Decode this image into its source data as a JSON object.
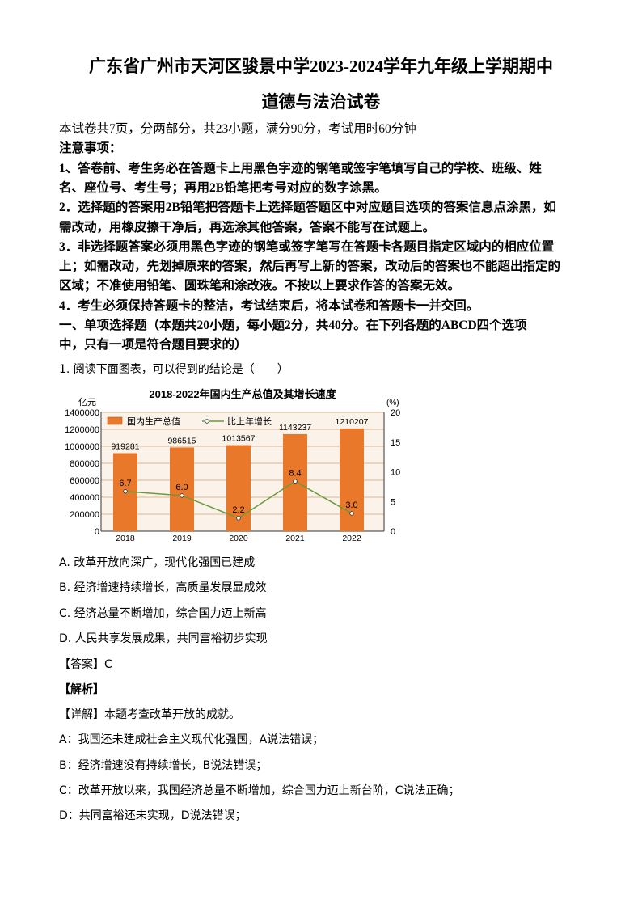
{
  "header": {
    "title_line1": "广东省广州市天河区骏景中学2023-2024学年九年级上学期期中",
    "title_line2": "道德与法治试卷"
  },
  "intro": [
    {
      "text": "本试卷共7页，分两部分，共23小题，满分90分，考试用时60分钟",
      "bold": false
    },
    {
      "text": "注意事项：",
      "bold": true
    },
    {
      "text": "1、答卷前、考生务必在答题卡上用黑色字迹的钢笔或签字笔填写自己的学校、班级、姓",
      "bold": true
    },
    {
      "text": "名、座位号、考生号；再用2B铅笔把考号对应的数字涂黑。",
      "bold": true
    },
    {
      "text": "2．选择题的答案用2B铅笔把答题卡上选择题答题区中对应题目选项的答案信息点涂黑，如",
      "bold": true
    },
    {
      "text": "需改动，用橡皮擦干净后，再选涂其他答案，答案不能写在试题上。",
      "bold": true
    },
    {
      "text": "3．非选择题答案必须用黑色字迹的钢笔或签字笔写在答题卡各题目指定区域内的相应位置",
      "bold": true
    },
    {
      "text": "上；如需改动，先划掉原来的答案，然后再写上新的答案，改动后的答案也不能超出指定的",
      "bold": true
    },
    {
      "text": "区域；不准使用铅笔、圆珠笔和涂改液。不按以上要求作答的答案无效。",
      "bold": true
    },
    {
      "text": "4．考生必须保持答题卡的整洁，考试结束后，将本试卷和答题卡一并交回。",
      "bold": true
    },
    {
      "text": "一、单项选择题（本题共20小题，每小题2分，共40分。在下列各题的ABCD四个选项",
      "bold": true
    },
    {
      "text": "中，只有一项是符合题目要求的）",
      "bold": true
    }
  ],
  "question": "1. 阅读下面图表，可以得到的结论是（　　）",
  "options": [
    "A. 改革开放向深广，现代化强国已建成",
    "B. 经济增速持续增长，高质量发展显成效",
    "C. 经济总量不断增加，综合国力迈上新高",
    "D. 人民共享发展成果，共同富裕初步实现"
  ],
  "answer": "【答案】C",
  "analysis_label": "【解析】",
  "explanation": [
    "【详解】本题考查改革开放的成就。",
    "A：我国还未建成社会主义现代化强国，A说法错误；",
    "B：经济增速没有持续增长，B说法错误；",
    "C：改革开放以来，我国经济总量不断增加，综合国力迈上新台阶，C说法正确；",
    "D：共同富裕还未实现，D说法错误；"
  ],
  "chart_data": {
    "type": "bar+line",
    "title": "2018-2022年国内生产总值及其增长速度",
    "categories": [
      "2018",
      "2019",
      "2020",
      "2021",
      "2022"
    ],
    "series": [
      {
        "name": "国内生产总值",
        "type": "bar",
        "axis": "left",
        "values": [
          919281,
          986515,
          1013567,
          1143237,
          1210207
        ],
        "labels": [
          "919281",
          "986515",
          "1013567",
          "1143237",
          "1210207"
        ],
        "color": "#e9782a"
      },
      {
        "name": "比上年增长",
        "type": "line",
        "axis": "right",
        "values": [
          6.7,
          6.0,
          2.2,
          8.4,
          3.0
        ],
        "labels": [
          "6.7",
          "6.0",
          "2.2",
          "8.4",
          "3.0"
        ],
        "color": "#6a9a3a"
      }
    ],
    "ylabel_left": "亿元",
    "ylabel_right": "(%)",
    "ylim_left": [
      0,
      1400000
    ],
    "yticks_left": [
      "0",
      "200000",
      "400000",
      "600000",
      "800000",
      "1000000",
      "1200000",
      "1400000"
    ],
    "ylim_right": [
      0,
      20
    ],
    "yticks_right": [
      "0",
      "5",
      "10",
      "15",
      "20"
    ],
    "grid": true,
    "legend": "top-left",
    "colors": {
      "grid": "#e6c9b0",
      "background": "#fbf3ea"
    }
  }
}
